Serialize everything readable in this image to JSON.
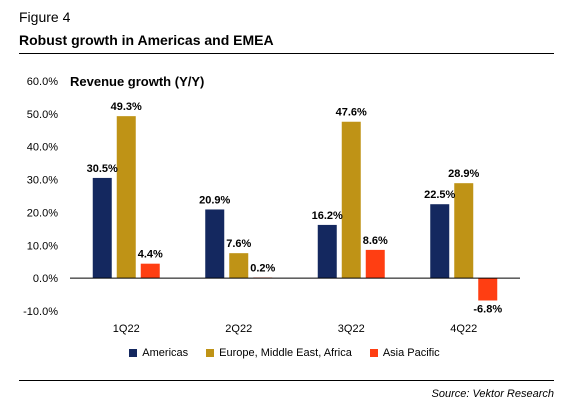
{
  "figure_label": "Figure 4",
  "figure_title": "Robust growth in Americas and EMEA",
  "source": "Source: Vektor Research",
  "chart_data": {
    "type": "bar",
    "title": "Revenue growth (Y/Y)",
    "categories": [
      "1Q22",
      "2Q22",
      "3Q22",
      "4Q22"
    ],
    "series": [
      {
        "name": "Americas",
        "color": "#14285f",
        "values": [
          30.5,
          20.9,
          16.2,
          22.5
        ]
      },
      {
        "name": "Europe, Middle East, Africa",
        "color": "#bf9316",
        "values": [
          49.3,
          7.6,
          47.6,
          28.9
        ]
      },
      {
        "name": "Asia Pacific",
        "color": "#ff3e12",
        "values": [
          4.4,
          0.2,
          8.6,
          -6.8
        ]
      }
    ],
    "ylim": [
      -10,
      60
    ],
    "yticks": [
      "-10.0%",
      "0.0%",
      "10.0%",
      "20.0%",
      "30.0%",
      "40.0%",
      "50.0%",
      "60.0%"
    ],
    "value_labels": [
      [
        "30.5%",
        "20.9%",
        "16.2%",
        "22.5%"
      ],
      [
        "49.3%",
        "7.6%",
        "47.6%",
        "28.9%"
      ],
      [
        "4.4%",
        "0.2%",
        "8.6%",
        "-6.8%"
      ]
    ],
    "legend_position": "bottom",
    "grid": false
  }
}
